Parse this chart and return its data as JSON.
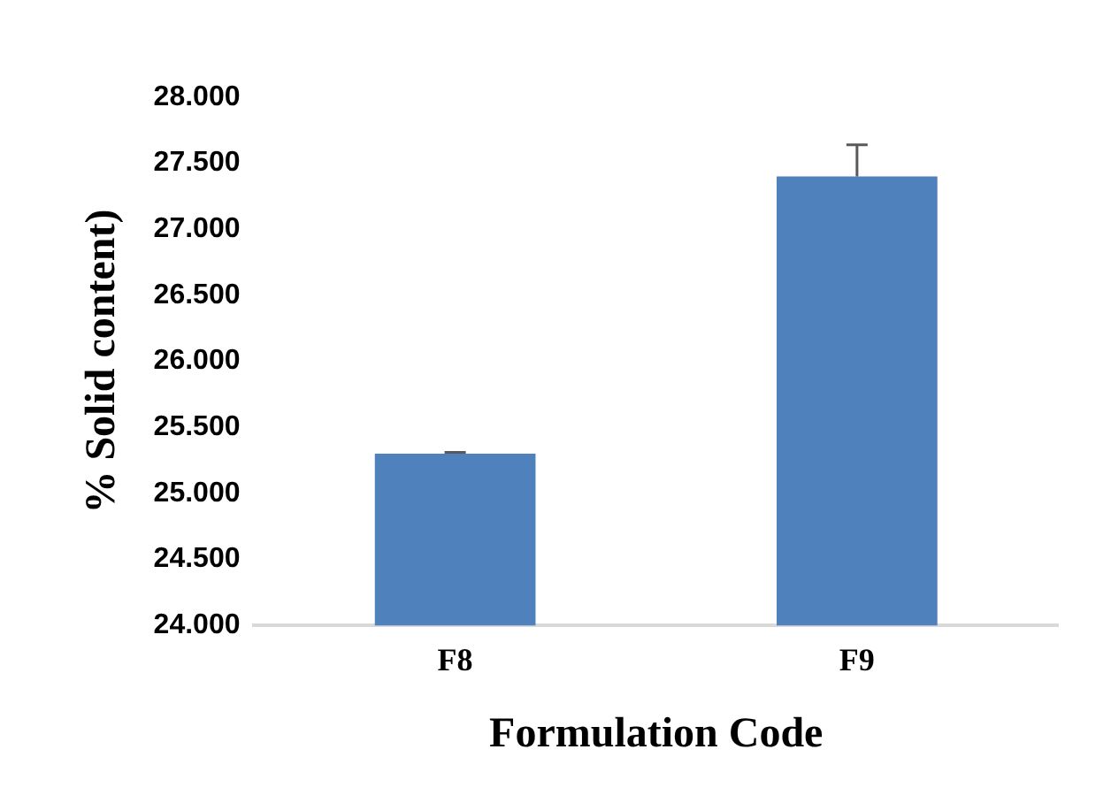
{
  "chart_data": {
    "type": "bar",
    "xlabel": "Formulation Code",
    "ylabel": "% Solid content)",
    "categories": [
      "F8",
      "F9"
    ],
    "values": [
      25.3,
      27.4
    ],
    "color": "#4f81bd",
    "errors": [
      [
        25.3,
        25.31
      ],
      [
        27.4,
        27.64
      ]
    ],
    "ylim": [
      24,
      28
    ],
    "yticks": [
      {
        "value": 24,
        "label": "24.000"
      },
      {
        "value": 24.5,
        "label": "24.500"
      },
      {
        "value": 25,
        "label": "25.000"
      },
      {
        "value": 25.5,
        "label": "25.500"
      },
      {
        "value": 26,
        "label": "26.000"
      },
      {
        "value": 26.5,
        "label": "26.500"
      },
      {
        "value": 27,
        "label": "27.000"
      },
      {
        "value": 27.5,
        "label": "27.500"
      },
      {
        "value": 28,
        "label": "28.000"
      }
    ],
    "grid": false,
    "legend": false
  }
}
